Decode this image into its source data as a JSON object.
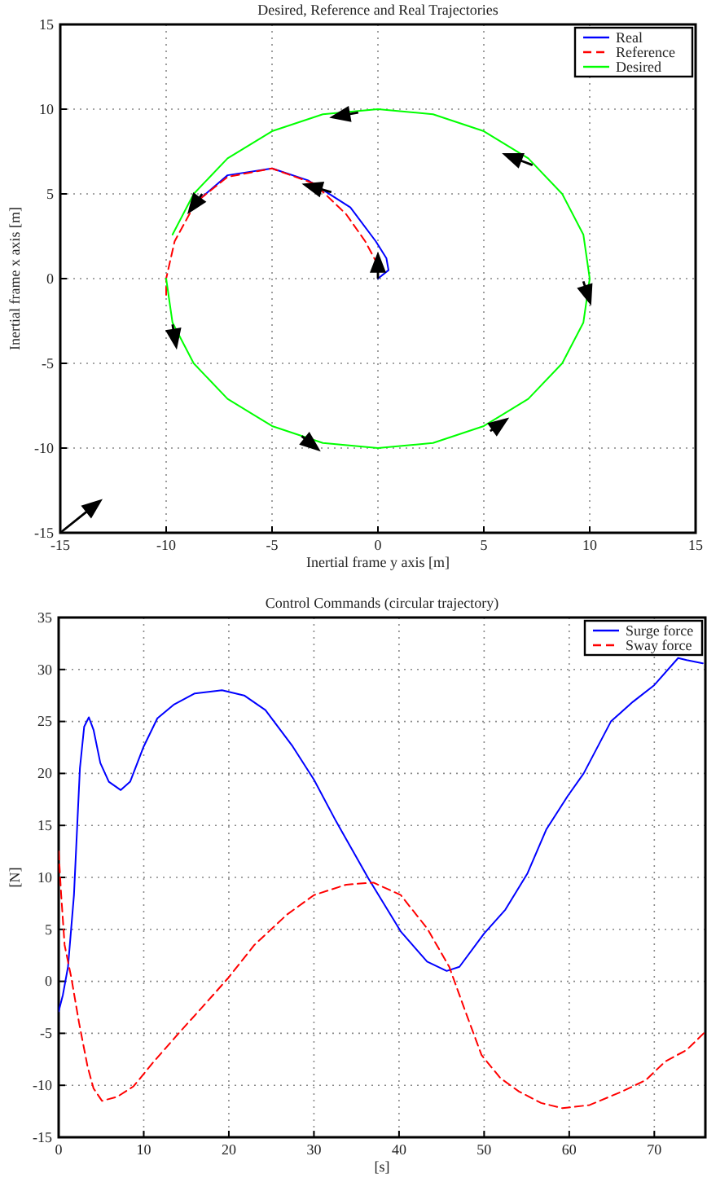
{
  "chart_data": [
    {
      "type": "line",
      "title": "Desired, Reference and Real Trajectories",
      "xlabel": "Inertial frame y axis [m]",
      "ylabel": "Inertial frame x axis [m]",
      "xlim": [
        -15,
        15
      ],
      "ylim": [
        -15,
        15
      ],
      "xticks": [
        -15,
        -10,
        -5,
        0,
        5,
        10,
        15
      ],
      "yticks": [
        -15,
        -10,
        -5,
        0,
        5,
        10,
        15
      ],
      "grid": true,
      "legend": "top right",
      "series": [
        {
          "name": "Real",
          "color": "#0000ff",
          "line_style": "solid",
          "x": [
            0,
            0.5,
            0.4,
            -0.1,
            -1.3,
            -3.3,
            -5,
            -7.1,
            -8.6
          ],
          "values": [
            0,
            0.5,
            1.2,
            2.2,
            4.2,
            5.8,
            6.5,
            6.1,
            4.5
          ]
        },
        {
          "name": "Reference",
          "color": "#ff0000",
          "line_style": "dashed",
          "x": [
            0,
            -0.6,
            -1.5,
            -3,
            -5,
            -7.1,
            -8.6,
            -9.6,
            -10,
            -10
          ],
          "values": [
            0.8,
            2.2,
            3.8,
            5.6,
            6.5,
            6,
            4.5,
            2.2,
            0,
            -1.2
          ]
        },
        {
          "name": "Desired",
          "color": "#00ff00",
          "line_style": "solid",
          "x": [
            -10,
            -9.7,
            -8.7,
            -7.1,
            -5,
            -2.6,
            0,
            2.6,
            5,
            7.1,
            8.7,
            9.7,
            10,
            9.7,
            8.7,
            7.1,
            5,
            2.6,
            0,
            -2.6,
            -5,
            -7.1,
            -8.7,
            -9.7
          ],
          "values": [
            0,
            -2.6,
            -5,
            -7.1,
            -8.7,
            -9.7,
            -10,
            -9.7,
            -8.7,
            -7.1,
            -5,
            -2.6,
            0,
            2.6,
            5,
            7.1,
            8.7,
            9.7,
            10,
            9.7,
            8.7,
            7.1,
            5,
            2.6
          ]
        }
      ]
    },
    {
      "type": "line",
      "title": "Control Commands (circular trajectory)",
      "xlabel": "[s]",
      "ylabel": "[N]",
      "xlim": [
        0,
        76
      ],
      "ylim": [
        -15,
        35
      ],
      "xticks": [
        0,
        10,
        20,
        30,
        40,
        50,
        60,
        70
      ],
      "yticks": [
        -15,
        -10,
        -5,
        0,
        5,
        10,
        15,
        20,
        25,
        30,
        35
      ],
      "grid": true,
      "legend": "top right",
      "series": [
        {
          "name": "Surge force",
          "color": "#0000ff",
          "line_style": "solid",
          "x": [
            0,
            0.5,
            1.1,
            1.8,
            2.5,
            3,
            3.55,
            4.1,
            4.9,
            5.9,
            7.3,
            8.4,
            10,
            11.6,
            13.5,
            16,
            19.2,
            21.8,
            24.3,
            27.5,
            30,
            32.6,
            36.4,
            40.2,
            43.3,
            45.6,
            47.1,
            50,
            52.5,
            55.1,
            57.3,
            59.8,
            61.7,
            64.9,
            67.5,
            70,
            72.8,
            73.8,
            75.7
          ],
          "values": [
            -2.9,
            -1.3,
            1.4,
            8.3,
            20.5,
            24.5,
            25.4,
            24.2,
            21,
            19.2,
            18.4,
            19.2,
            22.6,
            25.3,
            26.6,
            27.7,
            28,
            27.5,
            26.1,
            22.6,
            19.4,
            15.4,
            9.9,
            4.8,
            1.9,
            1,
            1.4,
            4.6,
            6.9,
            10.4,
            14.6,
            17.8,
            20,
            25,
            26.9,
            28.5,
            31.1,
            30.9,
            30.6
          ]
        },
        {
          "name": "Sway force",
          "color": "#ff0000",
          "line_style": "dashed",
          "x": [
            0,
            0.3,
            0.7,
            1.5,
            2.4,
            3.4,
            4.1,
            5.1,
            6.9,
            8.8,
            11,
            14.1,
            17.3,
            19.9,
            23,
            26.8,
            30,
            33.8,
            37,
            40.2,
            43.3,
            45.9,
            47.8,
            49.7,
            51.9,
            54.1,
            56.7,
            59.2,
            62.4,
            66.2,
            69,
            71.3,
            73.8,
            75.8
          ],
          "values": [
            12.5,
            8.3,
            3.5,
            0.3,
            -4,
            -8.2,
            -10.3,
            -11.5,
            -11.1,
            -10.1,
            -7.9,
            -5,
            -2.1,
            0.3,
            3.5,
            6.4,
            8.3,
            9.3,
            9.5,
            8.3,
            5.1,
            1.4,
            -2.9,
            -7.1,
            -9.3,
            -10.6,
            -11.7,
            -12.2,
            -11.9,
            -10.6,
            -9.5,
            -7.7,
            -6.6,
            -5
          ]
        }
      ]
    }
  ]
}
